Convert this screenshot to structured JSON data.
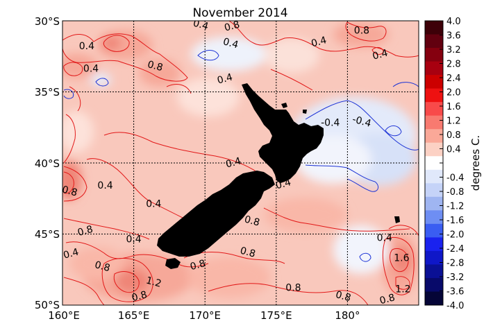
{
  "title": "November 2014",
  "map": {
    "lat_labels": [
      "30°S",
      "35°S",
      "40°S",
      "45°S",
      "50°S"
    ],
    "lon_labels": [
      "160°E",
      "165°E",
      "170°E",
      "175°E",
      "180°"
    ],
    "lat_range": [
      -50,
      -30
    ],
    "lon_range": [
      160,
      185
    ],
    "gridlines": true,
    "land_color": "#000000",
    "contour_labels": [
      {
        "text": "0.8",
        "lon": 171.9,
        "lat": -30.4
      },
      {
        "text": "0.8",
        "lon": 181.0,
        "lat": -30.7
      },
      {
        "text": "0.4",
        "lon": 169.7,
        "lat": -30.3
      },
      {
        "text": "0.4",
        "lon": 178.0,
        "lat": -31.5
      },
      {
        "text": "0.4",
        "lon": 161.7,
        "lat": -31.8
      },
      {
        "text": "0.4",
        "lon": 171.8,
        "lat": -31.6
      },
      {
        "text": "0.4",
        "lon": 182.3,
        "lat": -32.4
      },
      {
        "text": "0.4",
        "lon": 162.0,
        "lat": -33.4
      },
      {
        "text": "0.8",
        "lon": 166.5,
        "lat": -33.2
      },
      {
        "text": "0.4",
        "lon": 171.4,
        "lat": -34.1
      },
      {
        "text": "-0.4",
        "lon": 178.8,
        "lat": -37.2
      },
      {
        "text": "-0.4",
        "lon": 181.0,
        "lat": -37.1
      },
      {
        "text": "0.4",
        "lon": 172.0,
        "lat": -40.0
      },
      {
        "text": "0.4",
        "lon": 163.0,
        "lat": -41.6
      },
      {
        "text": "0.8",
        "lon": 160.5,
        "lat": -42.0
      },
      {
        "text": "0.4",
        "lon": 175.5,
        "lat": -41.5
      },
      {
        "text": "0.4",
        "lon": 166.4,
        "lat": -42.9
      },
      {
        "text": "0.8",
        "lon": 173.3,
        "lat": -44.1
      },
      {
        "text": "0.8",
        "lon": 161.6,
        "lat": -44.8
      },
      {
        "text": "0.4",
        "lon": 165.0,
        "lat": -45.4
      },
      {
        "text": "0.8",
        "lon": 173.0,
        "lat": -46.3
      },
      {
        "text": "0.4",
        "lon": 160.6,
        "lat": -46.4
      },
      {
        "text": "0.4",
        "lon": 182.6,
        "lat": -45.3
      },
      {
        "text": "0.8",
        "lon": 162.8,
        "lat": -47.3
      },
      {
        "text": "0.8",
        "lon": 169.5,
        "lat": -47.2
      },
      {
        "text": "1.6",
        "lon": 183.8,
        "lat": -46.7
      },
      {
        "text": "1.2",
        "lon": 166.4,
        "lat": -48.4
      },
      {
        "text": "0.8",
        "lon": 165.4,
        "lat": -49.4
      },
      {
        "text": "0.8",
        "lon": 176.2,
        "lat": -48.8
      },
      {
        "text": "0.8",
        "lon": 179.7,
        "lat": -49.4
      },
      {
        "text": "0.8",
        "lon": 182.8,
        "lat": -49.6
      },
      {
        "text": "1.2",
        "lon": 183.9,
        "lat": -48.9
      }
    ]
  },
  "colorbar": {
    "label": "degrees C.",
    "ticks": [
      "4.0",
      "3.6",
      "3.2",
      "2.8",
      "2.4",
      "2.0",
      "1.6",
      "1.2",
      "0.8",
      "0.4",
      "",
      "-0.4",
      "-0.8",
      "-1.2",
      "-1.6",
      "-2.0",
      "-2.4",
      "-2.8",
      "-3.2",
      "-3.6",
      "-4.0"
    ],
    "colors": [
      "#3d0008",
      "#62000f",
      "#85000f",
      "#a80010",
      "#cc0000",
      "#ee1111",
      "#f84a4a",
      "#f87a70",
      "#faa898",
      "#fcd1c4",
      "#ffffff",
      "#e0e8fb",
      "#c5d3f8",
      "#9fb5f1",
      "#6e8ef3",
      "#3a5df2",
      "#1a22ef",
      "#0f17c8",
      "#0a1095",
      "#080a6a",
      "#050537"
    ]
  }
}
